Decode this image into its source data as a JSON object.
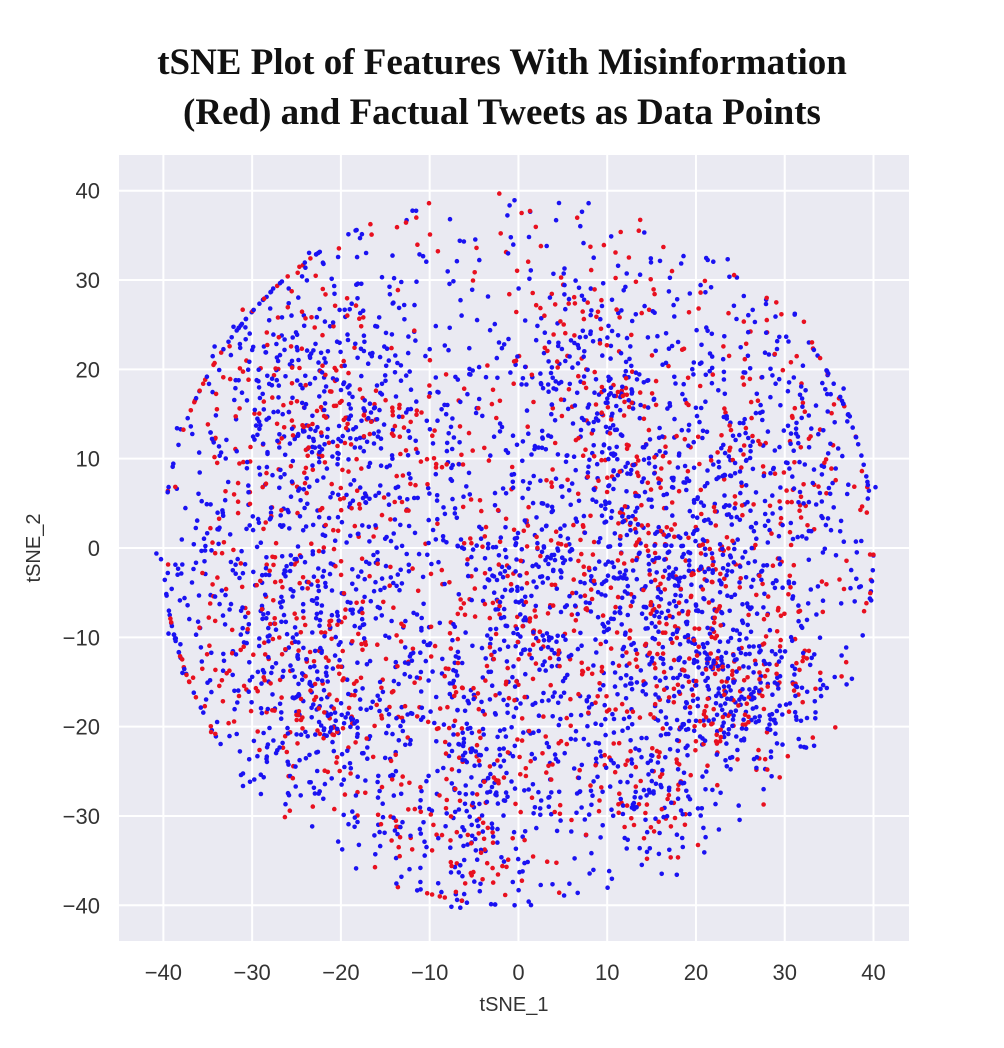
{
  "chart_data": {
    "type": "scatter",
    "title_lines": [
      "tSNE Plot of Features With Misinformation",
      "(Red) and Factual  Tweets as Data Points"
    ],
    "xlabel": "tSNE_1",
    "ylabel": "tSNE_2",
    "xlim": [
      -45,
      44
    ],
    "ylim": [
      -44,
      44
    ],
    "xticks": [
      -40,
      -30,
      -20,
      -10,
      0,
      10,
      20,
      30,
      40
    ],
    "yticks": [
      -40,
      -30,
      -20,
      -10,
      0,
      10,
      20,
      30,
      40
    ],
    "xtick_labels": [
      "−40",
      "−30",
      "−20",
      "−10",
      "0",
      "10",
      "20",
      "30",
      "40"
    ],
    "ytick_labels": [
      "−40",
      "−30",
      "−20",
      "−10",
      "0",
      "10",
      "20",
      "30",
      "40"
    ],
    "grid": true,
    "background": "#eaeaf2",
    "colors": {
      "misinformation": "#e8101f",
      "factual": "#1a12f2"
    },
    "series": [
      {
        "color": "#e8101f",
        "approx_extent": {
          "x": [
            -40,
            40
          ],
          "y": [
            -40,
            40
          ]
        }
      },
      {
        "color": "#1a12f2",
        "approx_extent": {
          "x": [
            -41,
            41
          ],
          "y": [
            -40,
            41
          ]
        }
      }
    ]
  }
}
